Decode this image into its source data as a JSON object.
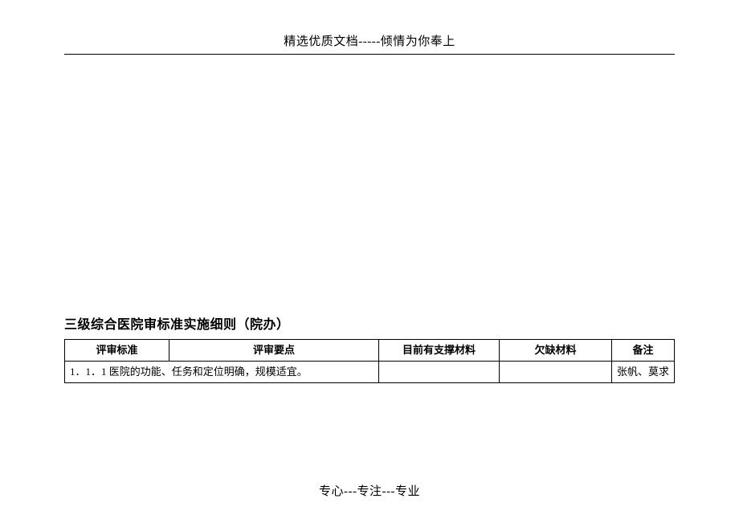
{
  "header": {
    "text": "精选优质文档-----倾情为你奉上"
  },
  "document": {
    "title": "三级综合医院审标准实施细则（院办）"
  },
  "table": {
    "columns": [
      "评审标准",
      "评审要点",
      "目前有支撑材料",
      "欠缺材料",
      "备注"
    ],
    "rows": [
      {
        "std_and_points": "1．1．1 医院的功能、任务和定位明确，规模适宜。",
        "support": "",
        "missing": "",
        "remark": "张帆、莫求"
      }
    ]
  },
  "footer": {
    "text": "专心---专注---专业"
  },
  "style": {
    "page_bg": "#ffffff",
    "text_color": "#000000",
    "border_color": "#000000",
    "header_fontsize": 15,
    "title_fontsize": 16,
    "cell_fontsize": 13,
    "footer_fontsize": 15
  }
}
